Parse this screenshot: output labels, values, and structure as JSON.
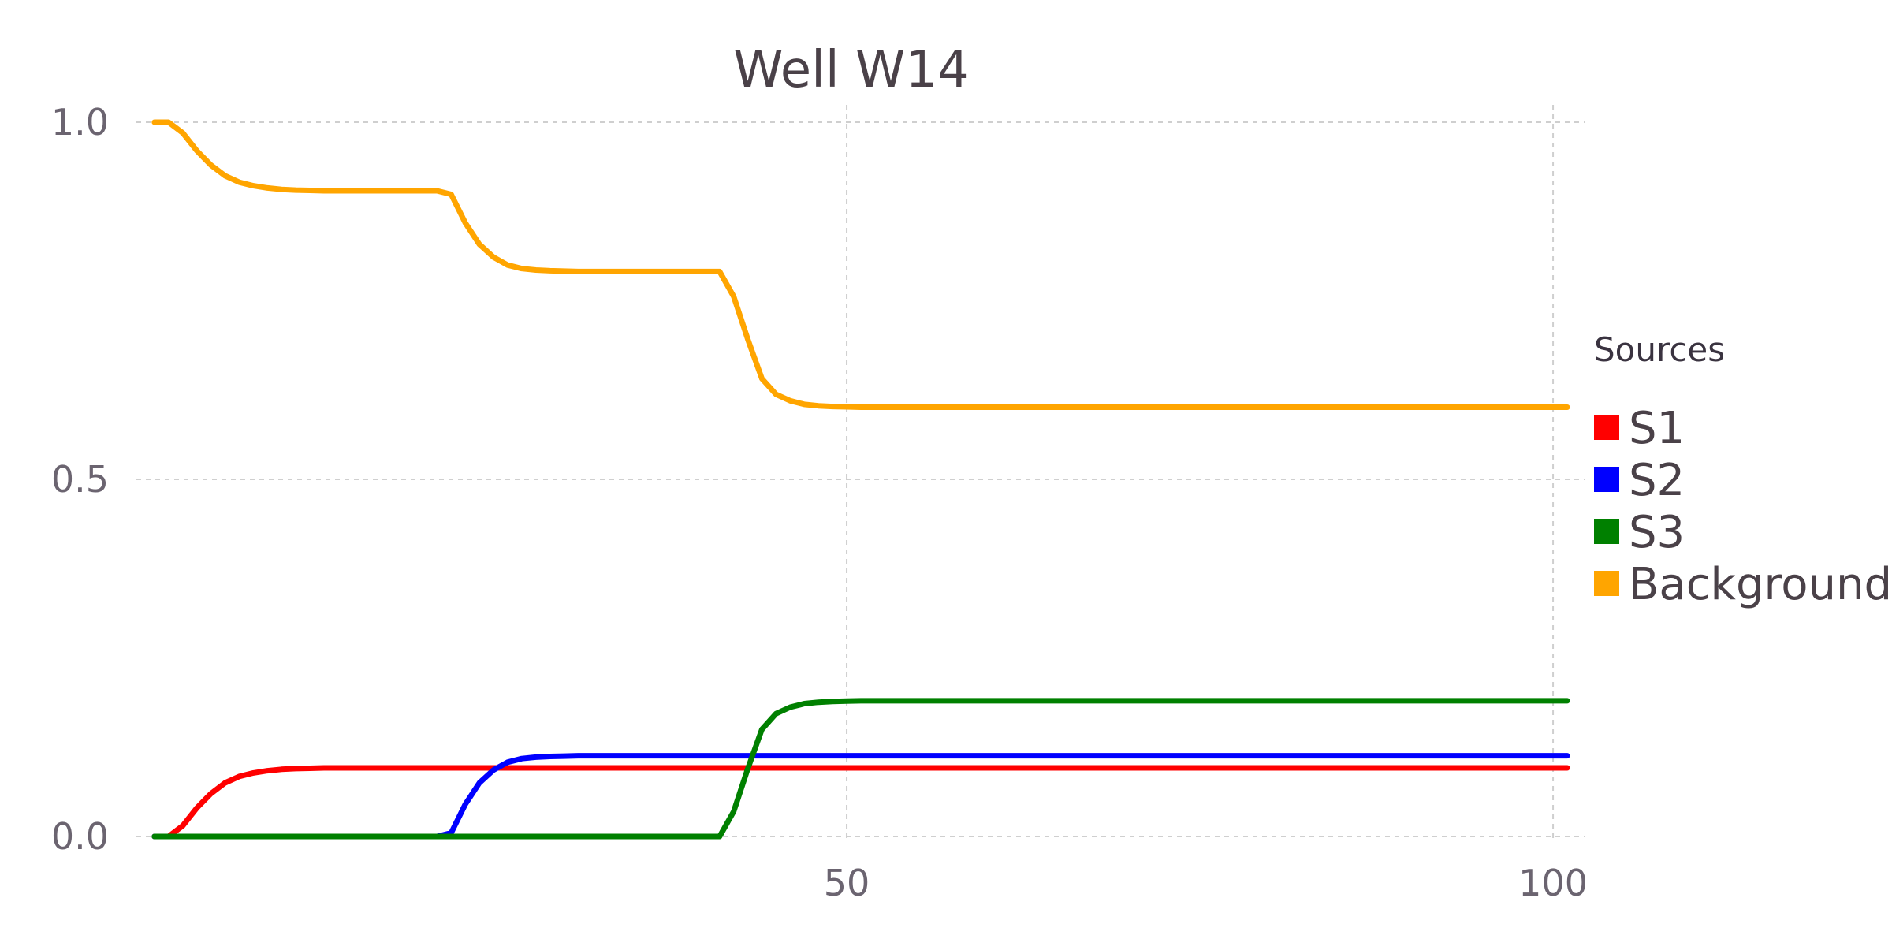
{
  "chart_data": {
    "type": "line",
    "title": "Well W14",
    "xlabel": "",
    "ylabel": "",
    "xlim": [
      0,
      101
    ],
    "ylim": [
      0,
      1
    ],
    "xticks": [
      {
        "value": 50,
        "label": "50"
      },
      {
        "value": 100,
        "label": "100"
      }
    ],
    "yticks": [
      {
        "value": 0,
        "label": "0.0"
      },
      {
        "value": 0.5,
        "label": "0.5"
      },
      {
        "value": 1,
        "label": "1.0"
      }
    ],
    "grid": true,
    "legend": {
      "title": "Sources",
      "position": "right"
    },
    "x": [
      1,
      2,
      3,
      4,
      5,
      6,
      7,
      8,
      9,
      10,
      11,
      12,
      13,
      14,
      15,
      16,
      17,
      18,
      19,
      20,
      21,
      22,
      23,
      24,
      25,
      26,
      27,
      28,
      29,
      30,
      31,
      32,
      33,
      34,
      35,
      36,
      37,
      38,
      39,
      40,
      41,
      42,
      43,
      44,
      45,
      46,
      47,
      48,
      49,
      50,
      51,
      52,
      53,
      54,
      55,
      56,
      57,
      58,
      59,
      60,
      61,
      62,
      63,
      64,
      65,
      66,
      67,
      68,
      69,
      70,
      71,
      72,
      73,
      74,
      75,
      76,
      77,
      78,
      79,
      80,
      81,
      82,
      83,
      84,
      85,
      86,
      87,
      88,
      89,
      90,
      91,
      92,
      93,
      94,
      95,
      96,
      97,
      98,
      99,
      100,
      101
    ],
    "series": [
      {
        "name": "S1",
        "color": "#ff0000",
        "values": [
          0,
          0,
          0.015,
          0.04,
          0.06,
          0.075,
          0.084,
          0.089,
          0.092,
          0.094,
          0.095,
          0.0955,
          0.096,
          0.096,
          0.096,
          0.096,
          0.096,
          0.096,
          0.096,
          0.096,
          0.096,
          0.096,
          0.096,
          0.096,
          0.096,
          0.096,
          0.096,
          0.096,
          0.096,
          0.096,
          0.096,
          0.096,
          0.096,
          0.096,
          0.096,
          0.096,
          0.096,
          0.096,
          0.096,
          0.096,
          0.096,
          0.096,
          0.096,
          0.096,
          0.096,
          0.096,
          0.096,
          0.096,
          0.096,
          0.096,
          0.096,
          0.096,
          0.096,
          0.096,
          0.096,
          0.096,
          0.096,
          0.096,
          0.096,
          0.096,
          0.096,
          0.096,
          0.096,
          0.096,
          0.096,
          0.096,
          0.096,
          0.096,
          0.096,
          0.096,
          0.096,
          0.096,
          0.096,
          0.096,
          0.096,
          0.096,
          0.096,
          0.096,
          0.096,
          0.096,
          0.096,
          0.096,
          0.096,
          0.096,
          0.096,
          0.096,
          0.096,
          0.096,
          0.096,
          0.096,
          0.096,
          0.096,
          0.096,
          0.096,
          0.096,
          0.096,
          0.096,
          0.096,
          0.096,
          0.096,
          0.096
        ]
      },
      {
        "name": "S2",
        "color": "#0000ff",
        "values": [
          0,
          0,
          0,
          0,
          0,
          0,
          0,
          0,
          0,
          0,
          0,
          0,
          0,
          0,
          0,
          0,
          0,
          0,
          0,
          0,
          0,
          0.005,
          0.045,
          0.075,
          0.093,
          0.104,
          0.109,
          0.111,
          0.112,
          0.1125,
          0.113,
          0.113,
          0.113,
          0.113,
          0.113,
          0.113,
          0.113,
          0.113,
          0.113,
          0.113,
          0.113,
          0.113,
          0.113,
          0.113,
          0.113,
          0.113,
          0.113,
          0.113,
          0.113,
          0.113,
          0.113,
          0.113,
          0.113,
          0.113,
          0.113,
          0.113,
          0.113,
          0.113,
          0.113,
          0.113,
          0.113,
          0.113,
          0.113,
          0.113,
          0.113,
          0.113,
          0.113,
          0.113,
          0.113,
          0.113,
          0.113,
          0.113,
          0.113,
          0.113,
          0.113,
          0.113,
          0.113,
          0.113,
          0.113,
          0.113,
          0.113,
          0.113,
          0.113,
          0.113,
          0.113,
          0.113,
          0.113,
          0.113,
          0.113,
          0.113,
          0.113,
          0.113,
          0.113,
          0.113,
          0.113,
          0.113,
          0.113,
          0.113,
          0.113,
          0.113,
          0.113
        ]
      },
      {
        "name": "S3",
        "color": "#008000",
        "values": [
          0,
          0,
          0,
          0,
          0,
          0,
          0,
          0,
          0,
          0,
          0,
          0,
          0,
          0,
          0,
          0,
          0,
          0,
          0,
          0,
          0,
          0,
          0,
          0,
          0,
          0,
          0,
          0,
          0,
          0,
          0,
          0,
          0,
          0,
          0,
          0,
          0,
          0,
          0,
          0,
          0,
          0.035,
          0.095,
          0.15,
          0.172,
          0.181,
          0.186,
          0.188,
          0.189,
          0.1895,
          0.19,
          0.19,
          0.19,
          0.19,
          0.19,
          0.19,
          0.19,
          0.19,
          0.19,
          0.19,
          0.19,
          0.19,
          0.19,
          0.19,
          0.19,
          0.19,
          0.19,
          0.19,
          0.19,
          0.19,
          0.19,
          0.19,
          0.19,
          0.19,
          0.19,
          0.19,
          0.19,
          0.19,
          0.19,
          0.19,
          0.19,
          0.19,
          0.19,
          0.19,
          0.19,
          0.19,
          0.19,
          0.19,
          0.19,
          0.19,
          0.19,
          0.19,
          0.19,
          0.19,
          0.19,
          0.19,
          0.19,
          0.19,
          0.19,
          0.19,
          0.19
        ]
      },
      {
        "name": "Background",
        "color": "#ffa500",
        "values": [
          1,
          1,
          0.985,
          0.96,
          0.94,
          0.925,
          0.916,
          0.911,
          0.908,
          0.906,
          0.905,
          0.9045,
          0.904,
          0.904,
          0.904,
          0.904,
          0.904,
          0.904,
          0.904,
          0.904,
          0.904,
          0.899,
          0.859,
          0.829,
          0.811,
          0.8,
          0.795,
          0.793,
          0.792,
          0.7915,
          0.791,
          0.791,
          0.791,
          0.791,
          0.791,
          0.791,
          0.791,
          0.791,
          0.791,
          0.791,
          0.791,
          0.756,
          0.696,
          0.641,
          0.619,
          0.61,
          0.605,
          0.603,
          0.602,
          0.6015,
          0.601,
          0.601,
          0.601,
          0.601,
          0.601,
          0.601,
          0.601,
          0.601,
          0.601,
          0.601,
          0.601,
          0.601,
          0.601,
          0.601,
          0.601,
          0.601,
          0.601,
          0.601,
          0.601,
          0.601,
          0.601,
          0.601,
          0.601,
          0.601,
          0.601,
          0.601,
          0.601,
          0.601,
          0.601,
          0.601,
          0.601,
          0.601,
          0.601,
          0.601,
          0.601,
          0.601,
          0.601,
          0.601,
          0.601,
          0.601,
          0.601,
          0.601,
          0.601,
          0.601,
          0.601,
          0.601,
          0.601,
          0.601,
          0.601,
          0.601,
          0.601
        ]
      }
    ]
  }
}
